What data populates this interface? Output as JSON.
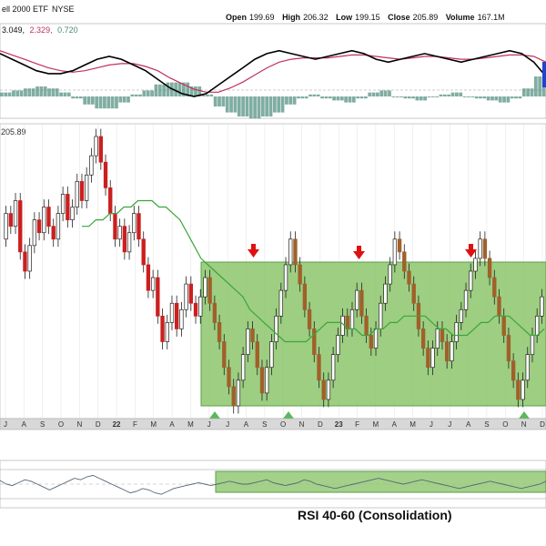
{
  "header": {
    "title": "ell 2000 ETF",
    "exchange": "NYSE",
    "open_label": "Open",
    "open": "199.69",
    "high_label": "High",
    "high": "206.32",
    "low_label": "Low",
    "low": "199.15",
    "close_label": "Close",
    "close": "205.89",
    "volume_label": "Volume",
    "volume": "167.1M"
  },
  "macd_labels": {
    "v1": "3.049,",
    "v2": "2.329,",
    "v3": "0.720"
  },
  "price_label": "205.89",
  "rsi_annotation": "RSI 40-60 (Consolidation)",
  "colors": {
    "up": "#ffffff",
    "down": "#cc1f1f",
    "down_brown": "#a0602a",
    "sma": "#3aa63a",
    "box_fill": "#8cc56b",
    "box_stroke": "#5aa04a",
    "arrow_red": "#e01010",
    "arrow_green": "#5cb85c",
    "macd_line": "#000000",
    "signal_line": "#c0305a",
    "hist": "#4a8a7a"
  },
  "chart_data": {
    "type": "candlestick",
    "x_ticks": [
      "J",
      "A",
      "S",
      "O",
      "N",
      "D",
      "22",
      "F",
      "M",
      "A",
      "M",
      "J",
      "J",
      "A",
      "S",
      "O",
      "N",
      "D",
      "23",
      "F",
      "M",
      "A",
      "M",
      "J",
      "J",
      "A",
      "S",
      "O",
      "N",
      "D"
    ],
    "price_range": [
      183,
      212
    ],
    "consolidation_range": [
      164,
      190
    ],
    "candles": [
      [
        190,
        194
      ],
      [
        194,
        192
      ],
      [
        192,
        196
      ],
      [
        196,
        188
      ],
      [
        188,
        185
      ],
      [
        185,
        189
      ],
      [
        189,
        193
      ],
      [
        193,
        191
      ],
      [
        191,
        195
      ],
      [
        195,
        192
      ],
      [
        192,
        190
      ],
      [
        190,
        194
      ],
      [
        194,
        197
      ],
      [
        197,
        193
      ],
      [
        193,
        195
      ],
      [
        195,
        199
      ],
      [
        199,
        196
      ],
      [
        196,
        200
      ],
      [
        200,
        203
      ],
      [
        203,
        206
      ],
      [
        206,
        202
      ],
      [
        202,
        198
      ],
      [
        198,
        194
      ],
      [
        194,
        190
      ],
      [
        190,
        192
      ],
      [
        192,
        188
      ],
      [
        188,
        191
      ],
      [
        191,
        194
      ],
      [
        194,
        190
      ],
      [
        190,
        186
      ],
      [
        186,
        182
      ],
      [
        182,
        184
      ],
      [
        184,
        178
      ],
      [
        178,
        174
      ],
      [
        174,
        177
      ],
      [
        177,
        180
      ],
      [
        180,
        176
      ],
      [
        176,
        179
      ],
      [
        179,
        183
      ],
      [
        183,
        180
      ],
      [
        180,
        178
      ],
      [
        178,
        181
      ],
      [
        181,
        184
      ],
      [
        184,
        180
      ],
      [
        180,
        177
      ],
      [
        177,
        174
      ],
      [
        174,
        170
      ],
      [
        170,
        167
      ],
      [
        167,
        164
      ],
      [
        164,
        168
      ],
      [
        168,
        172
      ],
      [
        172,
        176
      ],
      [
        176,
        174
      ],
      [
        174,
        170
      ],
      [
        170,
        166
      ],
      [
        166,
        170
      ],
      [
        170,
        174
      ],
      [
        174,
        178
      ],
      [
        178,
        182
      ],
      [
        182,
        186
      ],
      [
        186,
        190
      ],
      [
        190,
        186
      ],
      [
        186,
        183
      ],
      [
        183,
        179
      ],
      [
        179,
        176
      ],
      [
        176,
        172
      ],
      [
        172,
        168
      ],
      [
        168,
        165
      ],
      [
        165,
        168
      ],
      [
        168,
        172
      ],
      [
        172,
        175
      ],
      [
        175,
        178
      ],
      [
        178,
        176
      ],
      [
        176,
        179
      ],
      [
        179,
        182
      ],
      [
        182,
        178
      ],
      [
        178,
        175
      ],
      [
        175,
        173
      ],
      [
        173,
        176
      ],
      [
        176,
        180
      ],
      [
        180,
        183
      ],
      [
        183,
        186
      ],
      [
        186,
        190
      ],
      [
        190,
        188
      ],
      [
        188,
        185
      ],
      [
        185,
        183
      ],
      [
        183,
        180
      ],
      [
        180,
        176
      ],
      [
        176,
        173
      ],
      [
        173,
        170
      ],
      [
        170,
        173
      ],
      [
        173,
        176
      ],
      [
        176,
        174
      ],
      [
        174,
        171
      ],
      [
        171,
        174
      ],
      [
        174,
        177
      ],
      [
        177,
        179
      ],
      [
        179,
        182
      ],
      [
        182,
        185
      ],
      [
        185,
        187
      ],
      [
        187,
        190
      ],
      [
        190,
        187
      ],
      [
        187,
        184
      ],
      [
        184,
        181
      ],
      [
        181,
        178
      ],
      [
        178,
        175
      ],
      [
        175,
        171
      ],
      [
        171,
        168
      ],
      [
        168,
        165
      ],
      [
        165,
        168
      ],
      [
        168,
        172
      ],
      [
        172,
        175
      ],
      [
        175,
        178
      ],
      [
        178,
        181
      ]
    ],
    "sma": [
      192,
      192,
      193,
      193,
      194,
      194,
      195,
      195,
      196,
      196,
      196,
      195,
      195,
      194,
      193,
      191,
      189,
      187,
      186,
      185,
      184,
      183,
      182,
      181,
      179,
      178,
      177,
      176,
      175,
      174,
      174,
      174,
      174,
      175,
      176,
      177,
      177,
      177,
      176,
      176,
      175,
      175,
      176,
      176,
      177,
      177,
      178,
      178,
      178,
      178,
      177,
      176,
      176,
      175,
      175,
      175,
      176,
      177,
      177,
      178,
      178,
      178,
      177,
      176,
      175,
      175,
      176
    ],
    "macd": [
      10,
      14,
      18,
      22,
      24,
      24,
      22,
      18,
      14,
      12,
      14,
      18,
      22,
      28,
      34,
      38,
      40,
      38,
      32,
      26,
      20,
      14,
      10,
      8,
      10,
      12,
      14,
      12,
      10,
      8,
      10,
      14,
      16,
      14,
      12,
      10,
      12,
      14,
      16,
      14,
      12,
      10,
      8,
      10,
      16,
      26
    ],
    "signal": [
      8,
      11,
      14,
      17,
      20,
      22,
      23,
      22,
      20,
      18,
      17,
      17,
      19,
      22,
      27,
      31,
      35,
      37,
      37,
      34,
      30,
      25,
      20,
      16,
      14,
      13,
      13,
      13,
      12,
      11,
      11,
      12,
      13,
      14,
      13,
      12,
      12,
      13,
      14,
      14,
      13,
      12,
      11,
      11,
      12,
      16
    ],
    "hist": [
      2,
      3,
      4,
      5,
      4,
      2,
      -1,
      -4,
      -6,
      -6,
      -3,
      1,
      3,
      6,
      7,
      7,
      5,
      1,
      -5,
      -8,
      -10,
      -11,
      -10,
      -8,
      -4,
      -1,
      1,
      -1,
      -2,
      -3,
      -1,
      2,
      3,
      0,
      -1,
      -2,
      0,
      1,
      2,
      0,
      -1,
      -2,
      -3,
      -1,
      4,
      10
    ],
    "rsi": [
      55,
      50,
      48,
      52,
      56,
      54,
      50,
      46,
      42,
      46,
      50,
      54,
      58,
      56,
      60,
      62,
      58,
      54,
      50,
      46,
      42,
      38,
      40,
      44,
      42,
      38,
      36,
      40,
      44,
      46,
      48,
      50,
      52,
      50,
      48,
      50,
      52,
      54,
      52,
      50,
      50,
      52,
      54,
      56,
      52,
      50,
      48,
      50,
      52,
      56,
      54,
      50,
      48,
      46,
      44,
      46,
      48,
      50,
      52,
      54,
      56,
      58,
      56,
      54,
      52,
      50,
      52,
      54,
      56,
      54,
      52,
      50,
      48,
      46,
      44,
      46,
      48,
      50,
      52,
      54,
      52,
      50,
      48,
      46,
      44,
      46,
      48,
      50,
      54
    ]
  }
}
